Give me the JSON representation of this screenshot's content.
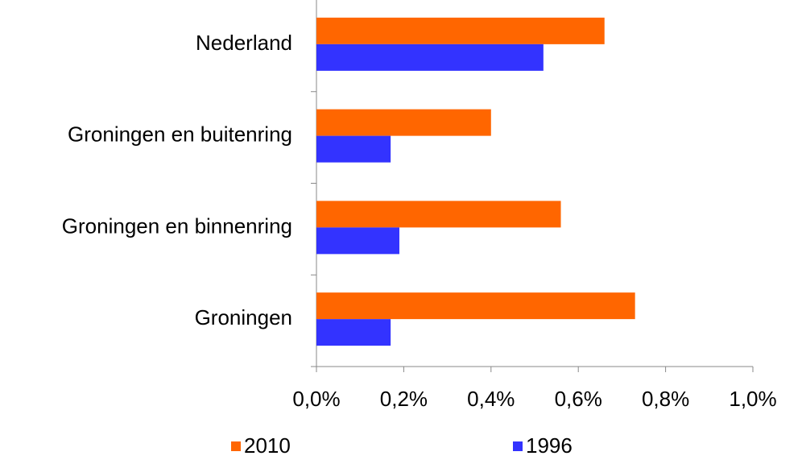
{
  "chart_data": {
    "type": "bar",
    "orientation": "horizontal",
    "categories": [
      "Nederland",
      "Groningen en buitenring",
      "Groningen en binnenring",
      "Groningen"
    ],
    "series": [
      {
        "name": "2010",
        "color": "#ff6600",
        "values": [
          0.66,
          0.4,
          0.56,
          0.73
        ]
      },
      {
        "name": "1996",
        "color": "#3333ff",
        "values": [
          0.52,
          0.17,
          0.19,
          0.17
        ]
      }
    ],
    "xlim": [
      0,
      1.0
    ],
    "xticks": [
      {
        "value": 0,
        "label": "0,0%"
      },
      {
        "value": 0.2,
        "label": "0,2%"
      },
      {
        "value": 0.4,
        "label": "0,4%"
      },
      {
        "value": 0.6,
        "label": "0,6%"
      },
      {
        "value": 0.8,
        "label": "0,8%"
      },
      {
        "value": 1.0,
        "label": "1,0%"
      }
    ],
    "legend": "bottom"
  }
}
